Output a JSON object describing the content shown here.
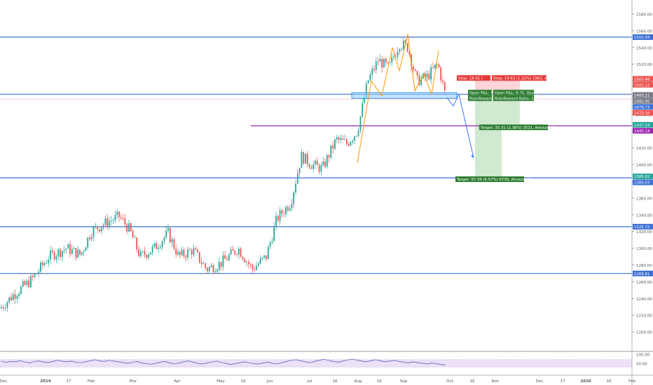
{
  "colors": {
    "up": "#26a69a",
    "down": "#ef5350",
    "hline_blue": "#3d6fd6",
    "hline_purple": "#9c27b0",
    "red_dotted": "#ef5350",
    "target_zone": "#c8e6c9",
    "stop_zone": "#ffcdd2",
    "rsi_line": "#3f51b5",
    "rsi_band": "#ede1f7",
    "pattern": "#ff9800",
    "blue_box": "#90caf9",
    "arrow": "#2962ff"
  },
  "chart_data": {
    "type": "candlestick",
    "title": "",
    "price_axis": {
      "ylim": [
        1180,
        1590
      ],
      "ticks": [
        1200,
        1220,
        1240,
        1260,
        1280,
        1300,
        1320,
        1340,
        1360,
        1380,
        1400,
        1420,
        1440,
        1460,
        1480,
        1500,
        1520,
        1540,
        1560,
        1580
      ],
      "tick_labels": [
        "1200.00",
        "1220.00",
        "1240.00",
        "1260.00",
        "1280.00",
        "1300.00",
        "1320.00",
        "1340.00",
        "1360.00",
        "1380.00",
        "1400.00",
        "1420.00",
        "1440.00",
        "1460.00",
        "1480.00",
        "1500.00",
        "1520.00",
        "1540.00",
        "1560.00",
        "1580.00"
      ]
    },
    "time_axis": {
      "labels": [
        "Dec",
        "2019",
        "17",
        "Feb",
        "Mar",
        "Apr",
        "May",
        "16",
        "Jun",
        "Jul",
        "16",
        "Aug",
        "16",
        "Sep",
        "Oct",
        "16",
        "Nov",
        "Dec",
        "17",
        "2020",
        "16",
        "Feb"
      ]
    },
    "price_badges": [
      {
        "value": 1552.34,
        "label": "1552.34",
        "color": "#3d6fd6"
      },
      {
        "value": 1502.48,
        "label": "1502.48",
        "color": "#ef5350"
      },
      {
        "value": 1502.12,
        "label": "1502.12",
        "color": "#ef5350"
      },
      {
        "value": 1483.21,
        "label": "1483.21",
        "color": "#787b86"
      },
      {
        "value": 1482.95,
        "label": "1482.95",
        "color": "#787b86"
      },
      {
        "value": 1479.73,
        "label": "1479.73",
        "color": "#3d6fd6"
      },
      {
        "value": 1473.1,
        "label": "1473.10",
        "color": "#ef5350"
      },
      {
        "value": 1447.54,
        "label": "1447.54",
        "color": "#26a69a"
      },
      {
        "value": 1445.14,
        "label": "1445.14",
        "color": "#9c27b0"
      },
      {
        "value": 1385.82,
        "label": "1385.82",
        "color": "#26a69a"
      },
      {
        "value": 1384.03,
        "label": "1384.03",
        "color": "#3d6fd6"
      },
      {
        "value": 1325.72,
        "label": "1325.72",
        "color": "#3d6fd6"
      },
      {
        "value": 1269.81,
        "label": "1269.81",
        "color": "#3d6fd6"
      }
    ],
    "horizontal_levels": [
      {
        "value": 1552.34,
        "style": "blue"
      },
      {
        "value": 1484.0,
        "style": "blue"
      },
      {
        "value": 1384.03,
        "style": "blue"
      },
      {
        "value": 1325.72,
        "style": "blue"
      },
      {
        "value": 1269.81,
        "style": "blue"
      },
      {
        "value": 1446.3,
        "style": "purple"
      },
      {
        "value": 1478.5,
        "style": "red-dotted"
      }
    ],
    "positions": [
      {
        "stop_text": "Stop: 18.91 (",
        "pnl_text": "Open P&L: 10",
        "rr_text": "Risk/Reward R",
        "target_text": "Target: 97.39 (6.57%) 9739, Amount: 1"
      },
      {
        "stop_text": "Stop: 19.63 (1.32%) 1963, Amount: 1",
        "pnl_text": "Open P&L: 9.75, Qty: 0",
        "rr_text": "Risk/Reward Ratio: 1.8",
        "target_text": "Target: 35.31 (2.38%) 3531, Amount: 1"
      }
    ],
    "rsi": {
      "ylim": [
        0,
        100
      ],
      "tick_labels": [
        "100.00",
        "50.00"
      ],
      "values": [
        62,
        55,
        60,
        58,
        64,
        57,
        52,
        59,
        63,
        56,
        54,
        60,
        66,
        61,
        58,
        62,
        55,
        53,
        58,
        64,
        70,
        63,
        60,
        66,
        62,
        58,
        54,
        50,
        55,
        60,
        52,
        48,
        45,
        50,
        56,
        60,
        52,
        47,
        52,
        58,
        63,
        56,
        50,
        46,
        52,
        57,
        62,
        55,
        50,
        44,
        48,
        54,
        58,
        53,
        48,
        46,
        52,
        56,
        50,
        47,
        54,
        60,
        66,
        70,
        64,
        58,
        53,
        60,
        67,
        72,
        66,
        60,
        56,
        62,
        68,
        74,
        68,
        62,
        58,
        64,
        70,
        64,
        58,
        62,
        66,
        60,
        56,
        52,
        58,
        54,
        50,
        46,
        52,
        48,
        44,
        40
      ]
    }
  }
}
